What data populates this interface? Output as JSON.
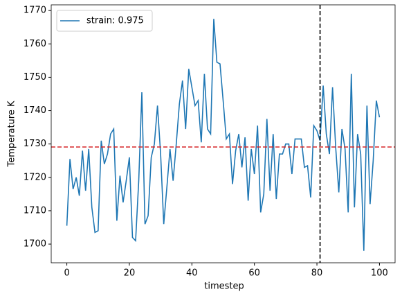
{
  "chart_data": {
    "type": "line",
    "x": [
      0,
      1,
      2,
      3,
      4,
      5,
      6,
      7,
      8,
      9,
      10,
      11,
      12,
      13,
      14,
      15,
      16,
      17,
      18,
      19,
      20,
      21,
      22,
      23,
      24,
      25,
      26,
      27,
      28,
      29,
      30,
      31,
      32,
      33,
      34,
      35,
      36,
      37,
      38,
      39,
      40,
      41,
      42,
      43,
      44,
      45,
      46,
      47,
      48,
      49,
      50,
      51,
      52,
      53,
      54,
      55,
      56,
      57,
      58,
      59,
      60,
      61,
      62,
      63,
      64,
      65,
      66,
      67,
      68,
      69,
      70,
      71,
      72,
      73,
      74,
      75,
      76,
      77,
      78,
      79,
      80,
      81,
      82,
      83,
      84,
      85,
      86,
      87,
      88,
      89,
      90,
      91,
      92,
      93,
      94,
      95,
      96,
      97,
      98,
      99,
      100
    ],
    "series": [
      {
        "name": "strain: 0.975",
        "color": "#1f77b4",
        "values": [
          1705.5,
          1725.5,
          1716.5,
          1720,
          1714.5,
          1728,
          1716,
          1728.5,
          1711,
          1703.5,
          1704,
          1731,
          1724,
          1727,
          1733,
          1734.5,
          1707,
          1720.5,
          1712.5,
          1719,
          1726,
          1702,
          1701,
          1719,
          1745.5,
          1706,
          1708.5,
          1726,
          1730,
          1741.5,
          1727,
          1706,
          1717,
          1728.5,
          1719,
          1730,
          1742,
          1749,
          1734.5,
          1752.5,
          1747,
          1741.5,
          1743,
          1730.5,
          1751,
          1734.5,
          1733,
          1767.5,
          1754.5,
          1754,
          1743,
          1731.5,
          1733,
          1718,
          1728,
          1733,
          1723,
          1732,
          1713,
          1728.5,
          1721,
          1735.5,
          1709.5,
          1715,
          1737.5,
          1716,
          1733,
          1713.5,
          1727,
          1727,
          1730,
          1730,
          1721,
          1731.5,
          1731.5,
          1731.5,
          1723,
          1723.5,
          1714,
          1735.5,
          1734,
          1731,
          1747.5,
          1733,
          1727,
          1747,
          1729,
          1715.5,
          1734.5,
          1728.5,
          1709.5,
          1751,
          1711,
          1733,
          1727,
          1698,
          1741.5,
          1712,
          1725,
          1743,
          1738
        ]
      }
    ],
    "xlabel": "timestep",
    "ylabel": "Temperature K",
    "xlim": [
      -5,
      105
    ],
    "ylim": [
      1694.4,
      1771.7
    ],
    "xticks": [
      0,
      20,
      40,
      60,
      80,
      100
    ],
    "yticks": [
      1700,
      1710,
      1720,
      1730,
      1740,
      1750,
      1760,
      1770
    ],
    "hline": {
      "value": 1729.1,
      "color": "#d62728"
    },
    "vline": {
      "value": 81,
      "color": "#000000"
    },
    "legend": "upper left"
  }
}
